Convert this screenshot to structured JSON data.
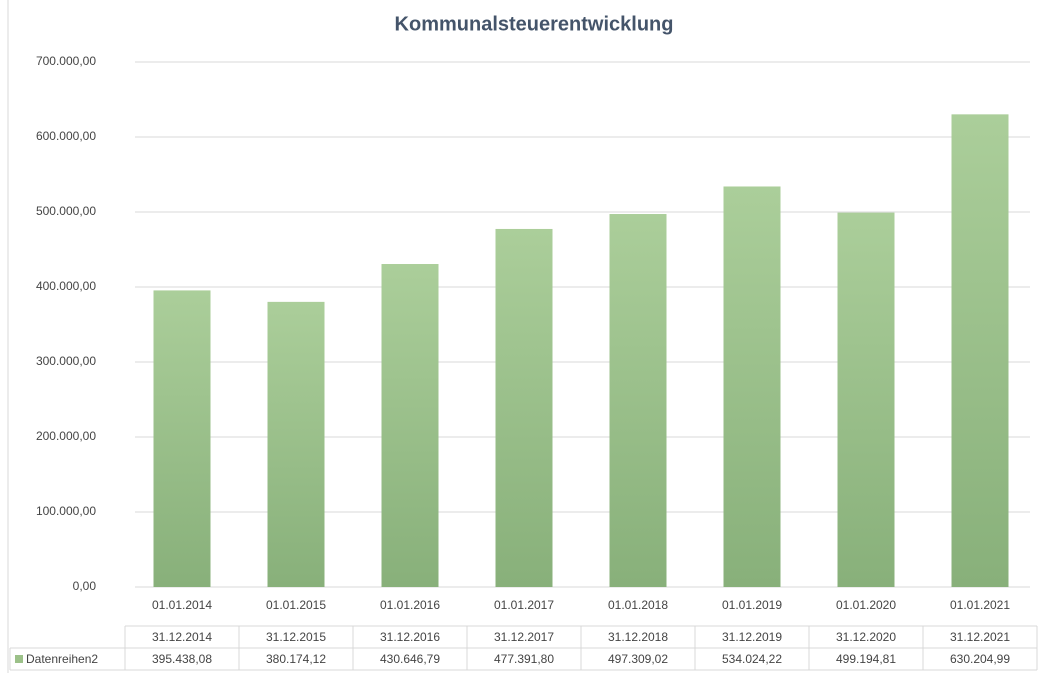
{
  "chart_data": {
    "type": "bar",
    "title": "Kommunalsteuerentwicklung",
    "categories": [
      "01.01.2014",
      "01.01.2015",
      "01.01.2016",
      "01.01.2017",
      "01.01.2018",
      "01.01.2019",
      "01.01.2020",
      "01.01.2021"
    ],
    "table_header": [
      "31.12.2014",
      "31.12.2015",
      "31.12.2016",
      "31.12.2017",
      "31.12.2018",
      "31.12.2019",
      "31.12.2020",
      "31.12.2021"
    ],
    "series": [
      {
        "name": "Datenreihen2",
        "color": "#9cc189",
        "values": [
          395438.08,
          380174.12,
          430646.79,
          477391.8,
          497309.02,
          534024.22,
          499194.81,
          630204.99
        ],
        "value_labels": [
          "395.438,08",
          "380.174,12",
          "430.646,79",
          "477.391,80",
          "497.309,02",
          "534.024,22",
          "499.194,81",
          "630.204,99"
        ]
      }
    ],
    "ylim": [
      0,
      700000
    ],
    "yticks": [
      {
        "value": 0,
        "label": "0,00"
      },
      {
        "value": 100000,
        "label": "100.000,00"
      },
      {
        "value": 200000,
        "label": "200.000,00"
      },
      {
        "value": 300000,
        "label": "300.000,00"
      },
      {
        "value": 400000,
        "label": "400.000,00"
      },
      {
        "value": 500000,
        "label": "500.000,00"
      },
      {
        "value": 600000,
        "label": "600.000,00"
      },
      {
        "value": 700000,
        "label": "700.000,00"
      }
    ],
    "grid": true
  }
}
